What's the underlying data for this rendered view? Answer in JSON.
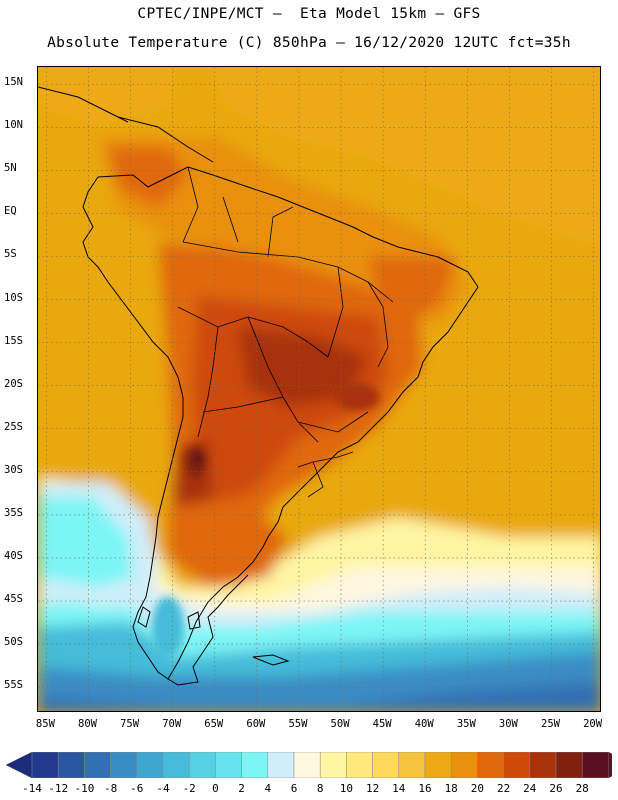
{
  "header": {
    "line1": "CPTEC/INPE/MCT –  Eta Model 15km – GFS",
    "line2": "Absolute Temperature (C) 850hPa – 16/12/2020 12UTC fct=35h"
  },
  "map": {
    "lat_labels": [
      "15N",
      "10N",
      "5N",
      "EQ",
      "5S",
      "10S",
      "15S",
      "20S",
      "25S",
      "30S",
      "35S",
      "40S",
      "45S",
      "50S",
      "55S"
    ],
    "lon_labels": [
      "85W",
      "80W",
      "75W",
      "70W",
      "65W",
      "60W",
      "55W",
      "50W",
      "45W",
      "40W",
      "35W",
      "30W",
      "25W",
      "20W"
    ],
    "lat_values": [
      15,
      10,
      5,
      0,
      -5,
      -10,
      -15,
      -20,
      -25,
      -30,
      -35,
      -40,
      -45,
      -50,
      -55
    ],
    "lon_values": [
      -85,
      -80,
      -75,
      -70,
      -65,
      -60,
      -55,
      -50,
      -45,
      -40,
      -35,
      -30,
      -25,
      -20
    ],
    "extent": {
      "lon_min": -86,
      "lon_max": -19,
      "lat_min": -58,
      "lat_max": 17
    }
  },
  "colorbar": {
    "labels": [
      "-14",
      "-12",
      "-10",
      "-8",
      "-6",
      "-4",
      "-2",
      "0",
      "2",
      "4",
      "6",
      "8",
      "10",
      "12",
      "14",
      "16",
      "18",
      "20",
      "22",
      "24",
      "26",
      "28"
    ],
    "colors": [
      "#213a8c",
      "#2a55a0",
      "#3170b3",
      "#3a8cc4",
      "#3ea6cf",
      "#45bcd9",
      "#55d1e3",
      "#66e3ee",
      "#7cf5f5",
      "#cfeefa",
      "#fff7e0",
      "#fff5a3",
      "#fee97a",
      "#fcd95a",
      "#f6c43c",
      "#eeaa15",
      "#e9900c",
      "#e0670a",
      "#cd4a08",
      "#a8320a",
      "#802110",
      "#5a0f1e"
    ],
    "left_arrow_color": "#1a2c7a",
    "right_arrow_color": "#6b0a24"
  }
}
